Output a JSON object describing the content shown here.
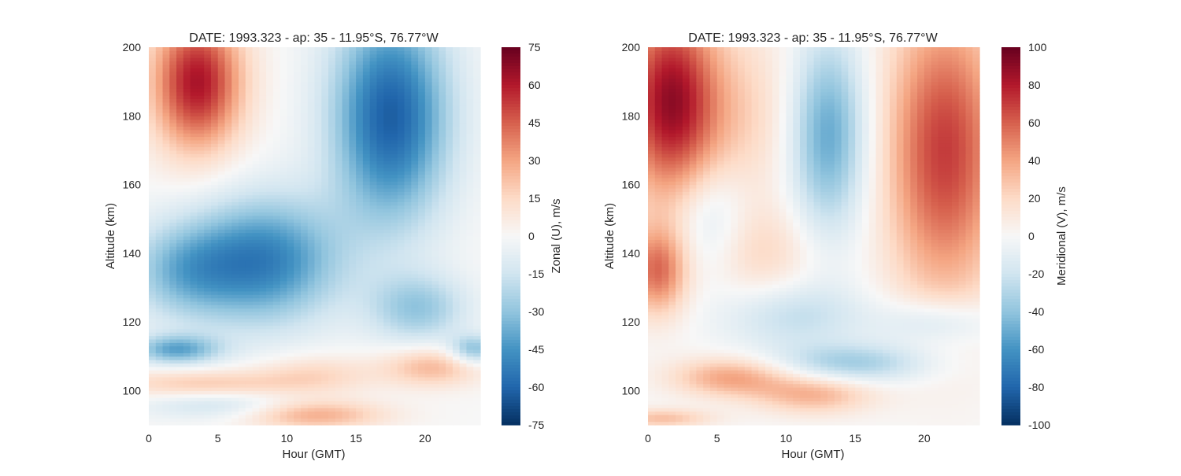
{
  "chart_data": [
    {
      "type": "heatmap",
      "title": "DATE: 1993.323 - ap:  35 -  11.95$^\\circ$S,  76.77$^\\circ$W",
      "title_display": "DATE: 1993.323 - ap:  35 -  11.95°S,  76.77°W",
      "xlabel": "Hour (GMT)",
      "ylabel": "Altitude (km)",
      "colorbar_label": "Zonal (U), m/s",
      "xlim": [
        0,
        24
      ],
      "ylim": [
        90,
        200
      ],
      "xticks": [
        0,
        5,
        10,
        15,
        20
      ],
      "yticks": [
        100,
        120,
        140,
        160,
        180,
        200
      ],
      "clim": [
        -75,
        75
      ],
      "colorbar_ticks": [
        75,
        60,
        45,
        30,
        15,
        0,
        -15,
        -30,
        -45,
        -60,
        -75
      ],
      "colormap": "RdBu_r",
      "features": [
        {
          "hour": 3.5,
          "alt": 190,
          "value": 62,
          "sigma_h": 2.3,
          "sigma_a": 14
        },
        {
          "hour": 17.5,
          "alt": 180,
          "value": -62,
          "sigma_h": 3.0,
          "sigma_a": 22
        },
        {
          "hour": 8.5,
          "alt": 138,
          "value": -50,
          "sigma_h": 3.8,
          "sigma_a": 13
        },
        {
          "hour": 2.5,
          "alt": 135,
          "value": -30,
          "sigma_h": 3.0,
          "sigma_a": 10
        },
        {
          "hour": 19.5,
          "alt": 124,
          "value": -28,
          "sigma_h": 2.5,
          "sigma_a": 7
        },
        {
          "hour": 2.0,
          "alt": 112,
          "value": -38,
          "sigma_h": 2.2,
          "sigma_a": 3
        },
        {
          "hour": 23.5,
          "alt": 112,
          "value": -32,
          "sigma_h": 1.2,
          "sigma_a": 3
        },
        {
          "hour": 12.0,
          "alt": 105,
          "value": 15,
          "sigma_h": 3.0,
          "sigma_a": 4
        },
        {
          "hour": 20.5,
          "alt": 107,
          "value": 25,
          "sigma_h": 2.5,
          "sigma_a": 4
        },
        {
          "hour": 4.0,
          "alt": 102,
          "value": 20,
          "sigma_h": 5.0,
          "sigma_a": 3
        },
        {
          "hour": 12.0,
          "alt": 93,
          "value": 28,
          "sigma_h": 3.5,
          "sigma_a": 3
        },
        {
          "hour": 5.0,
          "alt": 96,
          "value": -15,
          "sigma_h": 4.0,
          "sigma_a": 3
        }
      ]
    },
    {
      "type": "heatmap",
      "title": "DATE: 1993.323 - ap:  35 -  11.95$^\\circ$S,  76.77$^\\circ$W",
      "title_display": "DATE: 1993.323 - ap:  35 -  11.95°S,  76.77°W",
      "xlabel": "Hour (GMT)",
      "ylabel": "Altitude (km)",
      "colorbar_label": "Meridional (V), m/s",
      "xlim": [
        0,
        24
      ],
      "ylim": [
        90,
        200
      ],
      "xticks": [
        0,
        5,
        10,
        15,
        20
      ],
      "yticks": [
        100,
        120,
        140,
        160,
        180,
        200
      ],
      "clim": [
        -100,
        100
      ],
      "colorbar_ticks": [
        100,
        80,
        60,
        40,
        20,
        0,
        -20,
        -40,
        -60,
        -80,
        -100
      ],
      "colormap": "RdBu_r",
      "features": [
        {
          "hour": 1.5,
          "alt": 185,
          "value": 75,
          "sigma_h": 2.3,
          "sigma_a": 20
        },
        {
          "hour": 21.5,
          "alt": 170,
          "value": 70,
          "sigma_h": 3.0,
          "sigma_a": 30
        },
        {
          "hour": 13.0,
          "alt": 175,
          "value": -55,
          "sigma_h": 2.0,
          "sigma_a": 20
        },
        {
          "hour": 5.5,
          "alt": 180,
          "value": 25,
          "sigma_h": 4.0,
          "sigma_a": 20
        },
        {
          "hour": 0.7,
          "alt": 135,
          "value": 55,
          "sigma_h": 1.5,
          "sigma_a": 9
        },
        {
          "hour": 8.0,
          "alt": 140,
          "value": 20,
          "sigma_h": 3.0,
          "sigma_a": 10
        },
        {
          "hour": 4.5,
          "alt": 150,
          "value": -25,
          "sigma_h": 2.0,
          "sigma_a": 12
        },
        {
          "hour": 10.5,
          "alt": 122,
          "value": -25,
          "sigma_h": 3.5,
          "sigma_a": 7
        },
        {
          "hour": 15.0,
          "alt": 108,
          "value": -35,
          "sigma_h": 4.0,
          "sigma_a": 4
        },
        {
          "hour": 21.0,
          "alt": 120,
          "value": -25,
          "sigma_h": 3.0,
          "sigma_a": 5
        },
        {
          "hour": 6.0,
          "alt": 104,
          "value": 40,
          "sigma_h": 3.0,
          "sigma_a": 4
        },
        {
          "hour": 12.0,
          "alt": 99,
          "value": 35,
          "sigma_h": 3.0,
          "sigma_a": 4
        },
        {
          "hour": 1.0,
          "alt": 92,
          "value": 30,
          "sigma_h": 2.5,
          "sigma_a": 2
        }
      ]
    }
  ]
}
